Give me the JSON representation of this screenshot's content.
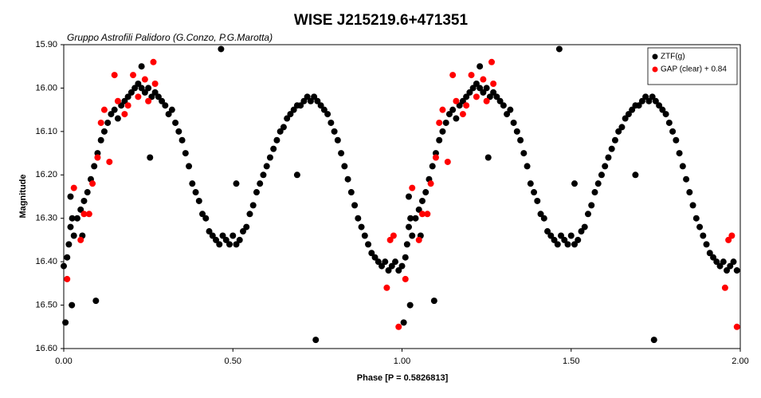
{
  "chart_data": {
    "type": "scatter",
    "title": "WISE J215219.6+471351",
    "subtitle": "Gruppo Astrofili Palidoro (G.Conzo, P.G.Marotta)",
    "x_label": "Phase [P = 0.5826813]",
    "y_label": "Magnitude",
    "xlim": [
      0,
      2
    ],
    "ylim": [
      15.9,
      16.6
    ],
    "y_inverted": true,
    "xticks": [
      {
        "value": 0,
        "label": "0.00"
      },
      {
        "value": 0.5,
        "label": "0.50"
      },
      {
        "value": 1,
        "label": "1.00"
      },
      {
        "value": 1.5,
        "label": "1.50"
      },
      {
        "value": 2,
        "label": "2.00"
      }
    ],
    "yticks": [
      {
        "value": 15.9,
        "label": "15.90"
      },
      {
        "value": 16.0,
        "label": "16.00"
      },
      {
        "value": 16.1,
        "label": "16.10"
      },
      {
        "value": 16.2,
        "label": "16.20"
      },
      {
        "value": 16.3,
        "label": "16.30"
      },
      {
        "value": 16.4,
        "label": "16.40"
      },
      {
        "value": 16.5,
        "label": "16.50"
      },
      {
        "value": 16.6,
        "label": "16.60"
      }
    ],
    "grid": false,
    "legend": "upper right",
    "series": [
      {
        "name": "ZTF(g)",
        "color": "#000000",
        "x": [
          0,
          0.01,
          0.015,
          0.02,
          0.025,
          0.03,
          0.04,
          0.05,
          0.055,
          0.06,
          0.07,
          0.08,
          0.09,
          0.1,
          0.11,
          0.12,
          0.13,
          0.14,
          0.15,
          0.16,
          0.17,
          0.18,
          0.19,
          0.2,
          0.21,
          0.22,
          0.23,
          0.24,
          0.25,
          0.26,
          0.27,
          0.28,
          0.29,
          0.3,
          0.31,
          0.32,
          0.33,
          0.34,
          0.35,
          0.36,
          0.37,
          0.38,
          0.39,
          0.4,
          0.41,
          0.42,
          0.43,
          0.44,
          0.45,
          0.46,
          0.47,
          0.48,
          0.49,
          0.5,
          0.51,
          0.52,
          0.53,
          0.54,
          0.55,
          0.56,
          0.57,
          0.58,
          0.59,
          0.6,
          0.61,
          0.62,
          0.63,
          0.64,
          0.65,
          0.66,
          0.67,
          0.68,
          0.69,
          0.7,
          0.71,
          0.72,
          0.73,
          0.74,
          0.75,
          0.76,
          0.77,
          0.78,
          0.79,
          0.8,
          0.81,
          0.82,
          0.83,
          0.84,
          0.85,
          0.86,
          0.87,
          0.88,
          0.89,
          0.9,
          0.91,
          0.92,
          0.93,
          0.94,
          0.95,
          0.96,
          0.97,
          0.98,
          0.99,
          0.465,
          0.745,
          0.005,
          0.095,
          0.255,
          0.51,
          0.69,
          0.02,
          0.024,
          0.23,
          1,
          1.01,
          1.015,
          1.02,
          1.025,
          1.03,
          1.04,
          1.05,
          1.055,
          1.06,
          1.07,
          1.08,
          1.09,
          1.1,
          1.11,
          1.12,
          1.13,
          1.14,
          1.15,
          1.16,
          1.17,
          1.18,
          1.19,
          1.2,
          1.21,
          1.22,
          1.23,
          1.24,
          1.25,
          1.26,
          1.27,
          1.28,
          1.29,
          1.3,
          1.31,
          1.32,
          1.33,
          1.34,
          1.35,
          1.36,
          1.37,
          1.38,
          1.39,
          1.4,
          1.41,
          1.42,
          1.43,
          1.44,
          1.45,
          1.46,
          1.47,
          1.48,
          1.49,
          1.5,
          1.51,
          1.52,
          1.53,
          1.54,
          1.55,
          1.56,
          1.57,
          1.58,
          1.59,
          1.6,
          1.61,
          1.62,
          1.63,
          1.64,
          1.65,
          1.66,
          1.67,
          1.68,
          1.69,
          1.7,
          1.71,
          1.72,
          1.73,
          1.74,
          1.75,
          1.76,
          1.77,
          1.78,
          1.79,
          1.8,
          1.81,
          1.82,
          1.83,
          1.84,
          1.85,
          1.86,
          1.87,
          1.88,
          1.89,
          1.9,
          1.91,
          1.92,
          1.93,
          1.94,
          1.95,
          1.96,
          1.97,
          1.98,
          1.99,
          1.465,
          1.745,
          1.005,
          1.095,
          1.255,
          1.51,
          1.69,
          1.02,
          1.024,
          1.23
        ],
        "values": [
          16.41,
          16.39,
          16.36,
          16.32,
          16.3,
          16.34,
          16.3,
          16.28,
          16.34,
          16.26,
          16.24,
          16.21,
          16.18,
          16.15,
          16.12,
          16.1,
          16.08,
          16.06,
          16.05,
          16.07,
          16.04,
          16.03,
          16.02,
          16.01,
          16.0,
          15.99,
          16.0,
          16.01,
          16.0,
          16.02,
          16.01,
          16.02,
          16.03,
          16.04,
          16.06,
          16.05,
          16.08,
          16.1,
          16.12,
          16.15,
          16.18,
          16.22,
          16.24,
          16.26,
          16.29,
          16.3,
          16.33,
          16.34,
          16.35,
          16.36,
          16.34,
          16.35,
          16.36,
          16.34,
          16.36,
          16.35,
          16.33,
          16.32,
          16.29,
          16.27,
          16.24,
          16.22,
          16.2,
          16.18,
          16.16,
          16.14,
          16.12,
          16.1,
          16.09,
          16.07,
          16.06,
          16.05,
          16.04,
          16.04,
          16.03,
          16.02,
          16.03,
          16.02,
          16.03,
          16.04,
          16.05,
          16.06,
          16.08,
          16.1,
          16.12,
          16.15,
          16.18,
          16.21,
          16.24,
          16.27,
          16.3,
          16.32,
          16.34,
          16.36,
          16.38,
          16.39,
          16.4,
          16.41,
          16.4,
          16.42,
          16.41,
          16.4,
          16.42,
          15.91,
          16.58,
          16.54,
          16.49,
          16.16,
          16.22,
          16.2,
          16.25,
          16.5,
          15.95,
          16.41,
          16.39,
          16.36,
          16.32,
          16.3,
          16.34,
          16.3,
          16.28,
          16.34,
          16.26,
          16.24,
          16.21,
          16.18,
          16.15,
          16.12,
          16.1,
          16.08,
          16.06,
          16.05,
          16.07,
          16.04,
          16.03,
          16.02,
          16.01,
          16.0,
          15.99,
          16.0,
          16.01,
          16.0,
          16.02,
          16.01,
          16.02,
          16.03,
          16.04,
          16.06,
          16.05,
          16.08,
          16.1,
          16.12,
          16.15,
          16.18,
          16.22,
          16.24,
          16.26,
          16.29,
          16.3,
          16.33,
          16.34,
          16.35,
          16.36,
          16.34,
          16.35,
          16.36,
          16.34,
          16.36,
          16.35,
          16.33,
          16.32,
          16.29,
          16.27,
          16.24,
          16.22,
          16.2,
          16.18,
          16.16,
          16.14,
          16.12,
          16.1,
          16.09,
          16.07,
          16.06,
          16.05,
          16.04,
          16.04,
          16.03,
          16.02,
          16.03,
          16.02,
          16.03,
          16.04,
          16.05,
          16.06,
          16.08,
          16.1,
          16.12,
          16.15,
          16.18,
          16.21,
          16.24,
          16.27,
          16.3,
          16.32,
          16.34,
          16.36,
          16.38,
          16.39,
          16.4,
          16.41,
          16.4,
          16.42,
          16.41,
          16.4,
          16.42,
          15.91,
          16.58,
          16.54,
          16.49,
          16.16,
          16.22,
          16.2,
          16.25,
          16.5,
          15.95
        ]
      },
      {
        "name": "GAP (clear) + 0.84",
        "color": "#ff0000",
        "x": [
          0.01,
          0.03,
          0.05,
          0.06,
          0.075,
          0.085,
          0.1,
          0.11,
          0.12,
          0.135,
          0.15,
          0.16,
          0.18,
          0.19,
          0.205,
          0.22,
          0.24,
          0.25,
          0.265,
          0.27,
          0.955,
          0.965,
          0.975,
          0.99,
          1.01,
          1.03,
          1.05,
          1.06,
          1.075,
          1.085,
          1.1,
          1.11,
          1.12,
          1.135,
          1.15,
          1.16,
          1.18,
          1.19,
          1.205,
          1.22,
          1.24,
          1.25,
          1.265,
          1.27,
          1.955,
          1.965,
          1.975,
          1.99
        ],
        "values": [
          16.44,
          16.23,
          16.35,
          16.29,
          16.29,
          16.22,
          16.16,
          16.08,
          16.05,
          16.17,
          15.97,
          16.03,
          16.06,
          16.04,
          15.97,
          16.02,
          15.98,
          16.03,
          15.94,
          15.99,
          16.46,
          16.35,
          16.34,
          16.55,
          16.44,
          16.23,
          16.35,
          16.29,
          16.29,
          16.22,
          16.16,
          16.08,
          16.05,
          16.17,
          15.97,
          16.03,
          16.06,
          16.04,
          15.97,
          16.02,
          15.98,
          16.03,
          15.94,
          15.99,
          16.46,
          16.35,
          16.34,
          16.55
        ]
      }
    ]
  }
}
